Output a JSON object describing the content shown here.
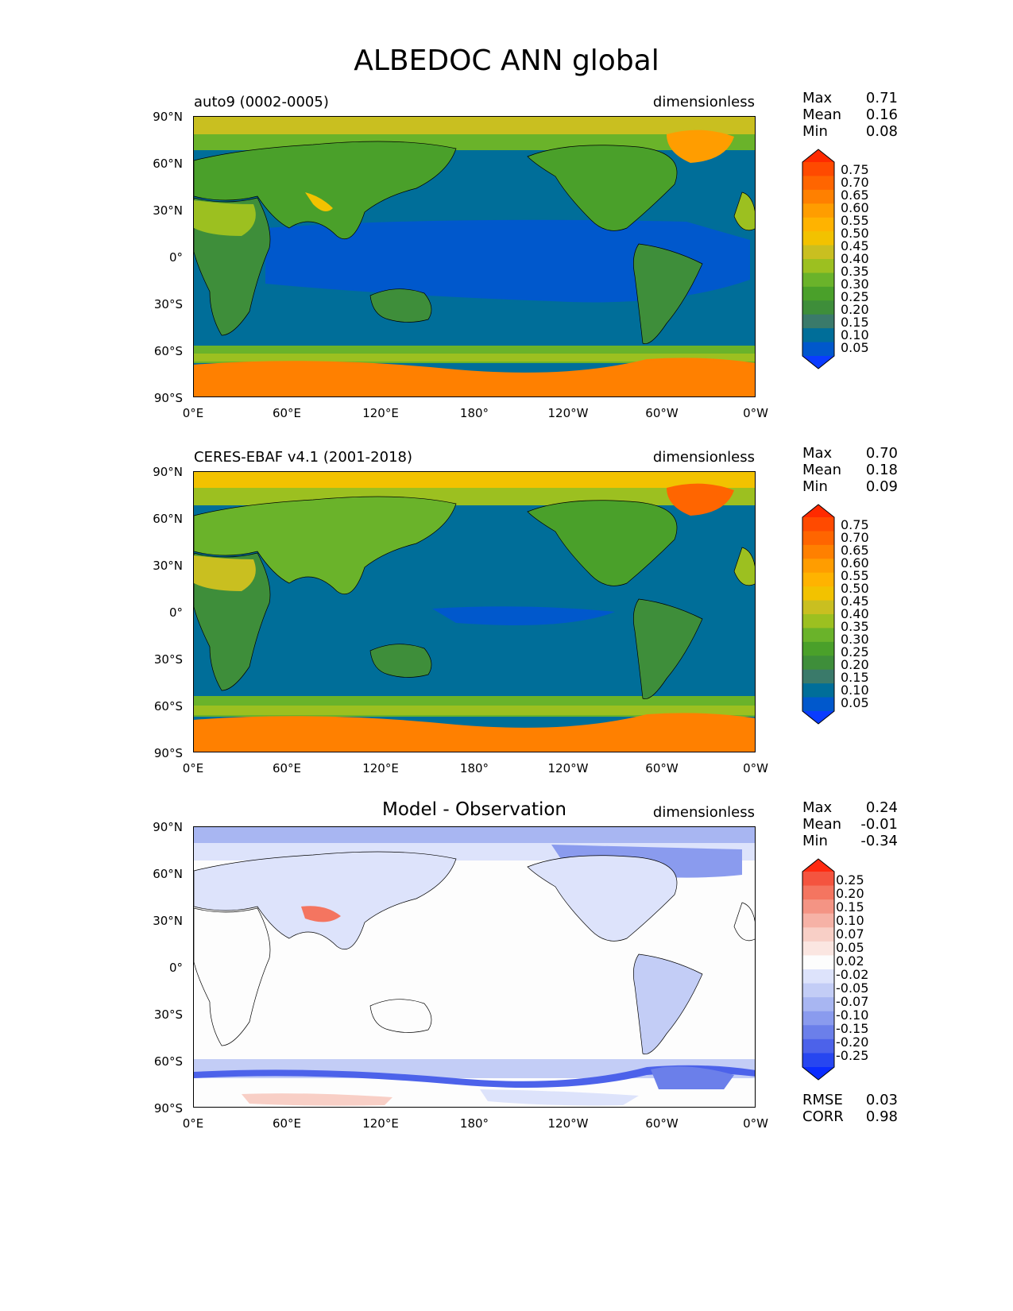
{
  "figure": {
    "title": "ALBEDOC ANN global"
  },
  "panels": [
    {
      "id": "model",
      "left_title": "auto9 (0002-0005)",
      "center_title": "",
      "units": "dimensionless",
      "stats": {
        "max_label": "Max",
        "max": "0.71",
        "mean_label": "Mean",
        "mean": "0.16",
        "min_label": "Min",
        "min": "0.08"
      }
    },
    {
      "id": "obs",
      "left_title": "CERES-EBAF v4.1 (2001-2018)",
      "center_title": "",
      "units": "dimensionless",
      "stats": {
        "max_label": "Max",
        "max": "0.70",
        "mean_label": "Mean",
        "mean": "0.18",
        "min_label": "Min",
        "min": "0.09"
      }
    },
    {
      "id": "diff",
      "left_title": "",
      "center_title": "Model - Observation",
      "units": "dimensionless",
      "stats": {
        "max_label": "Max",
        "max": "0.24",
        "mean_label": "Mean",
        "mean": "-0.01",
        "min_label": "Min",
        "min": "-0.34"
      },
      "metrics": {
        "rmse_label": "RMSE",
        "rmse": "0.03",
        "corr_label": "CORR",
        "corr": "0.98"
      }
    }
  ],
  "axes": {
    "lat_ticks": [
      "90°N",
      "60°N",
      "30°N",
      "0°",
      "30°S",
      "60°S",
      "90°S"
    ],
    "lon_ticks": [
      "0°E",
      "60°E",
      "120°E",
      "180°",
      "120°W",
      "60°W",
      "0°W"
    ]
  },
  "colorbars": {
    "field": {
      "labels": [
        "0.75",
        "0.70",
        "0.65",
        "0.60",
        "0.55",
        "0.50",
        "0.45",
        "0.40",
        "0.35",
        "0.30",
        "0.25",
        "0.20",
        "0.15",
        "0.10",
        "0.05"
      ],
      "colors": [
        "#ff2a00",
        "#ff4a00",
        "#ff6500",
        "#ff8000",
        "#ff9d00",
        "#ffb300",
        "#f2c200",
        "#c9bf20",
        "#9cc020",
        "#6ab32a",
        "#4aa02a",
        "#3e8e3a",
        "#3a7a6a",
        "#006e99",
        "#0058cc",
        "#0a3cff"
      ]
    },
    "diff": {
      "labels": [
        "0.25",
        "0.20",
        "0.15",
        "0.10",
        "0.07",
        "0.05",
        "0.02",
        "-0.02",
        "-0.05",
        "-0.07",
        "-0.10",
        "-0.15",
        "-0.20",
        "-0.25"
      ],
      "colors": [
        "#ff2a10",
        "#f4543f",
        "#f47560",
        "#f49484",
        "#f6b2a6",
        "#f8cfc6",
        "#fbe6e1",
        "#fdfdfd",
        "#dde3fb",
        "#c3cdf6",
        "#a8b6f2",
        "#8a9bee",
        "#6b7fea",
        "#4c62ea",
        "#2746f0",
        "#0a2cff"
      ]
    }
  }
}
